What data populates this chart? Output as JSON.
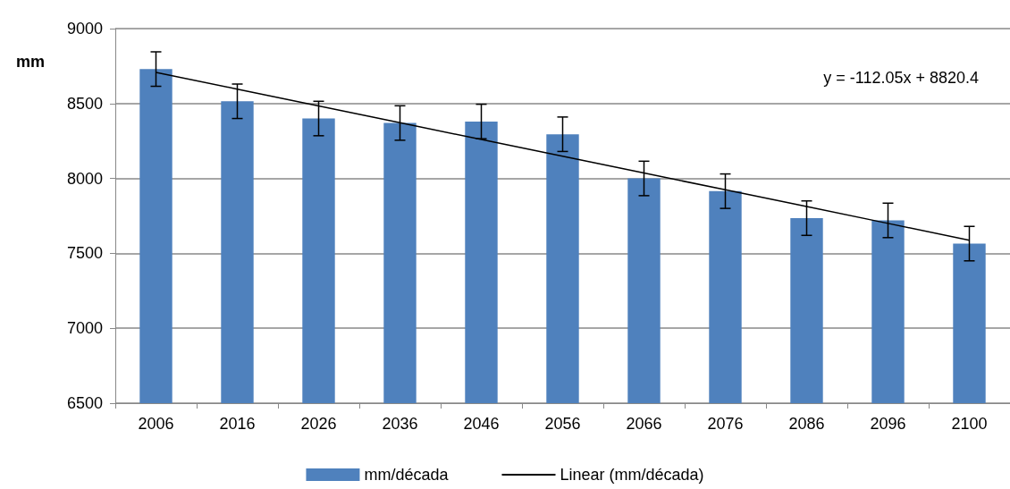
{
  "chart_data": {
    "type": "bar",
    "ylabel": "mm",
    "categories": [
      "2006",
      "2016",
      "2026",
      "2036",
      "2046",
      "2056",
      "2066",
      "2076",
      "2086",
      "2096",
      "2100"
    ],
    "series": [
      {
        "name": "mm/década",
        "color": "#4f81bd",
        "values": [
          8730,
          8515,
          8400,
          8370,
          8380,
          8295,
          8000,
          7915,
          7735,
          7720,
          7565
        ],
        "errors": [
          115,
          115,
          115,
          115,
          115,
          115,
          115,
          115,
          115,
          115,
          115
        ]
      },
      {
        "name": "Linear (mm/década)",
        "type": "line",
        "color": "#000000",
        "values": [
          8708,
          8596,
          8484,
          8372,
          8260,
          8148,
          8036,
          7924,
          7812,
          7700,
          7588
        ]
      }
    ],
    "ylim": [
      6500,
      9000
    ],
    "yticks": [
      6500,
      7000,
      7500,
      8000,
      8500,
      9000
    ],
    "grid": "y",
    "legend": "bottom",
    "marker": "none",
    "annotations": [
      "y = -112.05x + 8820.4"
    ]
  }
}
